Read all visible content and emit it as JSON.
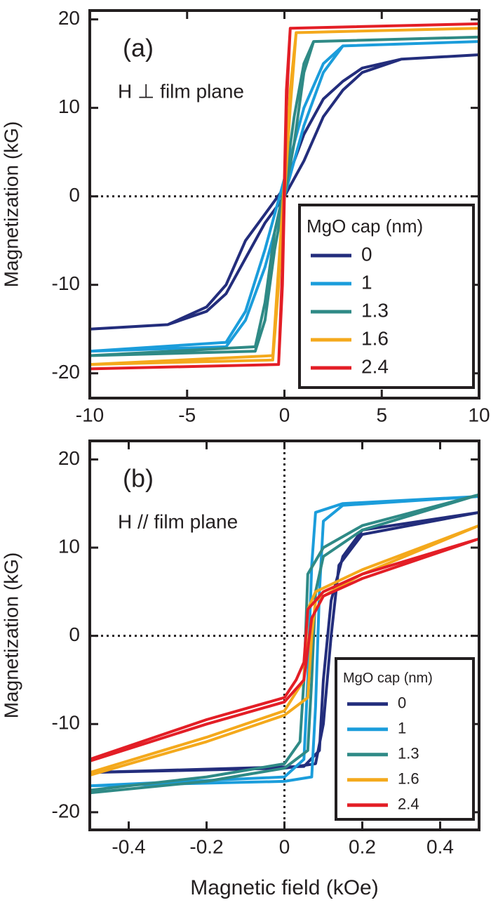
{
  "chart_data": [
    {
      "type": "line",
      "panel_label": "(a)",
      "annotation": "H ⊥ film plane",
      "y_label": "Magnetization (kG)",
      "xlim": [
        -10,
        10
      ],
      "xticks": [
        -10,
        -5,
        0,
        5,
        10
      ],
      "ylim": [
        -22.8,
        21
      ],
      "yticks": [
        -20,
        -10,
        0,
        10,
        20
      ],
      "zero_lines": [
        "y"
      ],
      "legend": "lower right",
      "legend_title": "MgO cap (nm)",
      "series": [
        {
          "name": "0",
          "color": "#232d7c",
          "x": [
            -10,
            -6,
            -4,
            -3,
            -2,
            -1,
            0,
            1,
            2,
            3,
            4,
            6,
            10,
            6,
            4,
            3,
            2,
            1,
            0,
            -1,
            -2,
            -3,
            -4,
            -6,
            -10
          ],
          "values": [
            -15,
            -14.5,
            -13,
            -11,
            -7,
            -3,
            0,
            4,
            9,
            12,
            14,
            15.5,
            16,
            15.5,
            14.5,
            13,
            11,
            7,
            1,
            -2,
            -5,
            -10,
            -12.5,
            -14.5,
            -15
          ]
        },
        {
          "name": "1",
          "color": "#1b9ddb",
          "x": [
            -10,
            -3,
            -2,
            -1,
            0,
            1,
            2,
            3,
            10,
            3,
            2,
            1,
            0,
            -1,
            -2,
            -3,
            -10
          ],
          "values": [
            -17.5,
            -17,
            -14,
            -8,
            0,
            8,
            14,
            17,
            17.5,
            17,
            15,
            10,
            2,
            -6,
            -13,
            -16.5,
            -17.5
          ]
        },
        {
          "name": "1.3",
          "color": "#2f8a86",
          "x": [
            -10,
            -1.5,
            -1,
            -0.5,
            0,
            0.5,
            1,
            1.5,
            10,
            1.5,
            1,
            0.5,
            0,
            -0.5,
            -1,
            -1.5,
            -10
          ],
          "values": [
            -18,
            -17.5,
            -14,
            -6,
            0,
            6,
            14,
            17.5,
            18,
            17.5,
            15,
            9,
            1,
            -4,
            -12,
            -17,
            -18
          ]
        },
        {
          "name": "1.6",
          "color": "#f4a91c",
          "x": [
            -10,
            -0.6,
            -0.3,
            0,
            0.3,
            0.6,
            10,
            0.6,
            0.3,
            0,
            -0.3,
            -0.6,
            -10
          ],
          "values": [
            -19,
            -18.5,
            -10,
            0,
            10,
            18.5,
            19,
            18.5,
            12,
            2,
            -8,
            -18,
            -19
          ]
        },
        {
          "name": "2.4",
          "color": "#e31e26",
          "x": [
            -10,
            -0.3,
            -0.1,
            0.1,
            0.3,
            10,
            0.3,
            0.1,
            -0.1,
            -0.3,
            -10
          ],
          "values": [
            -19.5,
            -19,
            -10,
            10,
            19,
            19.5,
            19,
            12,
            -8,
            -19,
            -19.5
          ]
        }
      ]
    },
    {
      "type": "line",
      "panel_label": "(b)",
      "annotation": "H // film plane",
      "y_label": "Magnetization (kG)",
      "x_label": "Magnetic field (kOe)",
      "xlim": [
        -0.5,
        0.5
      ],
      "xticks": [
        -0.4,
        -0.2,
        0,
        0.2,
        0.4
      ],
      "ylim": [
        -22,
        22.1
      ],
      "yticks": [
        -20,
        -10,
        0,
        10,
        20
      ],
      "zero_lines": [
        "x",
        "y"
      ],
      "legend": "lower right",
      "legend_title": "MgO cap (nm)",
      "series": [
        {
          "name": "0",
          "color": "#232d7c",
          "x": [
            -0.5,
            0,
            0.08,
            0.1,
            0.12,
            0.14,
            0.2,
            0.5,
            0.2,
            0.15,
            0.12,
            0.1,
            0.09,
            0.05,
            -0.5
          ],
          "values": [
            -15.5,
            -15,
            -14.5,
            -10,
            0,
            8,
            11.5,
            14,
            12,
            9,
            4,
            -5,
            -13,
            -14.8,
            -15.5
          ]
        },
        {
          "name": "1",
          "color": "#1b9ddb",
          "x": [
            -0.5,
            0,
            0.07,
            0.08,
            0.09,
            0.1,
            0.15,
            0.5,
            0.15,
            0.08,
            0.07,
            0.06,
            0.05,
            0,
            -0.5
          ],
          "values": [
            -17,
            -16.5,
            -16,
            -8,
            5,
            13,
            14.8,
            15.8,
            15,
            14,
            8,
            -5,
            -14,
            -16,
            -17
          ]
        },
        {
          "name": "1.3",
          "color": "#2f8a86",
          "x": [
            -0.5,
            -0.2,
            0,
            0.06,
            0.07,
            0.08,
            0.1,
            0.2,
            0.5,
            0.2,
            0.1,
            0.06,
            0.05,
            0.04,
            0,
            -0.2,
            -0.5
          ],
          "values": [
            -17.8,
            -16.5,
            -15,
            -13,
            -5,
            5,
            9,
            12,
            16,
            12.5,
            10,
            7,
            -5,
            -12,
            -14.5,
            -16,
            -17.5
          ]
        },
        {
          "name": "1.6",
          "color": "#f4a91c",
          "x": [
            -0.5,
            -0.2,
            0,
            0.06,
            0.07,
            0.08,
            0.2,
            0.5,
            0.2,
            0.08,
            0.06,
            0.05,
            0,
            -0.2,
            -0.5
          ],
          "values": [
            -15.8,
            -12,
            -9,
            -7,
            0,
            4,
            7,
            12.5,
            7.5,
            5,
            3,
            -5,
            -8.5,
            -11.5,
            -15.5
          ]
        },
        {
          "name": "2.4",
          "color": "#e31e26",
          "x": [
            -0.5,
            -0.2,
            0,
            0.05,
            0.07,
            0.1,
            0.2,
            0.5,
            0.2,
            0.1,
            0.06,
            0.05,
            0.03,
            0,
            -0.2,
            -0.5
          ],
          "values": [
            -14.2,
            -10,
            -7.5,
            -5,
            2,
            4.5,
            6.5,
            11,
            7,
            5,
            3,
            -3,
            -5,
            -7,
            -9.5,
            -14
          ]
        }
      ]
    }
  ]
}
